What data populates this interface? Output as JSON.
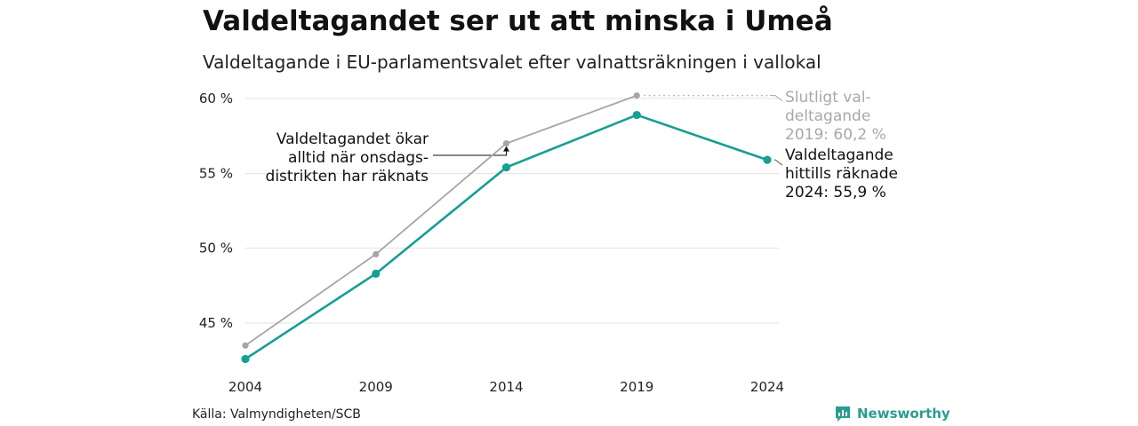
{
  "header": {
    "title": "Valdeltagandet ser ut att minska i Umeå",
    "subtitle": "Valdeltagande i EU-parlamentsvalet efter valnattsräkningen i vallokal"
  },
  "chart_data": {
    "type": "line",
    "x": [
      2004,
      2009,
      2014,
      2019,
      2024
    ],
    "x_tick_labels": [
      "2004",
      "2009",
      "2014",
      "2019",
      "2024"
    ],
    "y_tick_values": [
      45,
      50,
      55,
      60
    ],
    "y_tick_labels": [
      "45 %",
      "50 %",
      "55 %",
      "60 %"
    ],
    "ylim": [
      42,
      61.5
    ],
    "grid": "horizontal",
    "series": [
      {
        "color": "#a6a6a6",
        "x": [
          2004,
          2009,
          2014,
          2019
        ],
        "values": [
          43.5,
          49.6,
          57.0,
          60.2
        ]
      },
      {
        "color": "#169f93",
        "x": [
          2004,
          2009,
          2014,
          2019,
          2024
        ],
        "values": [
          42.6,
          48.3,
          55.4,
          58.9,
          55.9
        ]
      }
    ],
    "annotations": {
      "left_lines": [
        "Valdeltagandet ökar",
        "alltid när onsdags-",
        "distrikten har räknats"
      ],
      "gray_lines": [
        "Slutligt val-",
        "deltagande",
        "2019: 60,2 %"
      ],
      "teal_lines": [
        "Valdeltagande",
        "hittills räknade",
        "2024: 55,9 %"
      ]
    }
  },
  "footer": {
    "source": "Källa: Valmyndigheten/SCB",
    "brand": "Newsworthy",
    "brand_color": "#2a9d8f",
    "brand_icon": "bar-chart-speech-bubble-icon"
  }
}
